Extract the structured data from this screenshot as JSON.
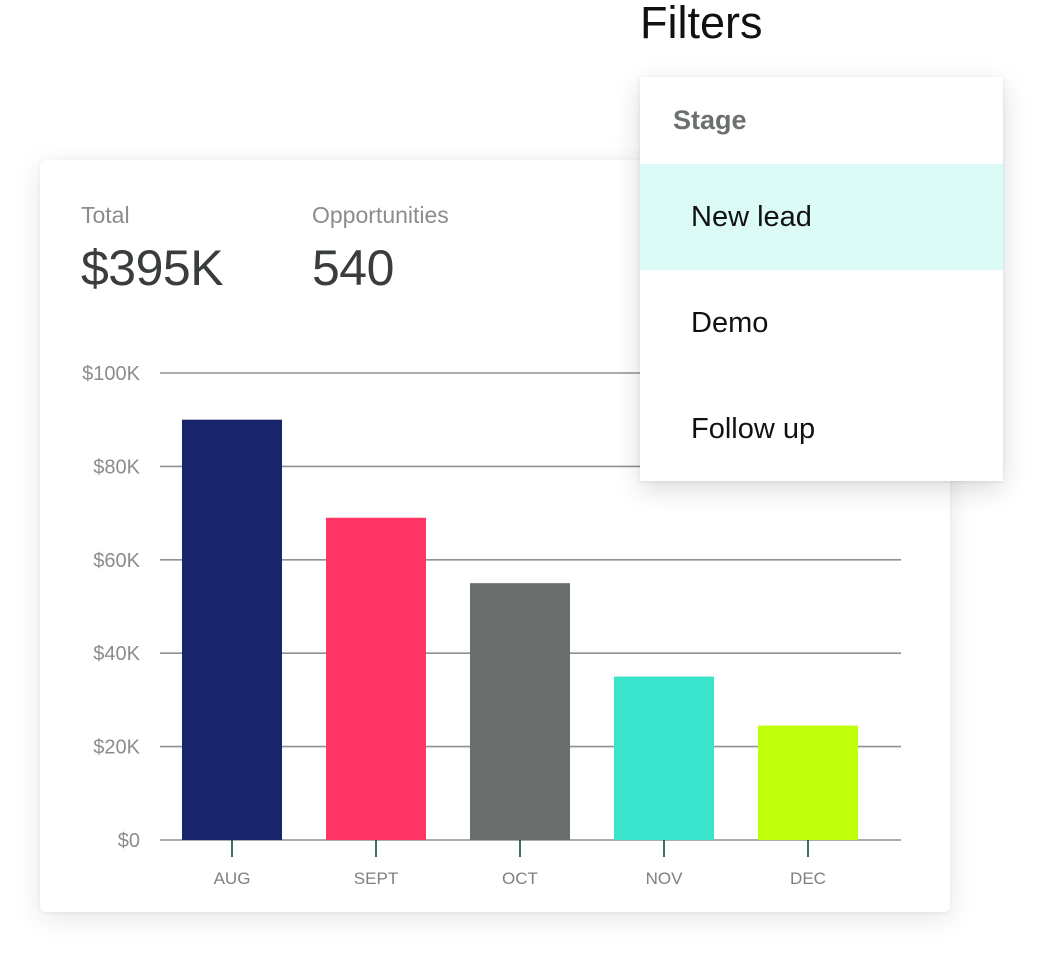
{
  "summary": {
    "total_label": "Total",
    "total_value": "$395K",
    "opportunities_label": "Opportunities",
    "opportunities_value": "540"
  },
  "filters": {
    "title": "Filters",
    "header": "Stage",
    "options": [
      {
        "label": "New lead",
        "selected": true
      },
      {
        "label": "Demo",
        "selected": false
      },
      {
        "label": "Follow up",
        "selected": false
      }
    ],
    "selected_bg": "#ddfbf6"
  },
  "chart_data": {
    "type": "bar",
    "categories": [
      "AUG",
      "SEPT",
      "OCT",
      "NOV",
      "DEC"
    ],
    "values": [
      90000,
      69000,
      55000,
      35000,
      24500
    ],
    "colors": [
      "#18246b",
      "#ff3565",
      "#6a6f6d",
      "#39e3cc",
      "#bfff0a"
    ],
    "y_ticks": [
      {
        "value": 0,
        "label": "$0"
      },
      {
        "value": 20000,
        "label": "$20K"
      },
      {
        "value": 40000,
        "label": "$40K"
      },
      {
        "value": 60000,
        "label": "$60K"
      },
      {
        "value": 80000,
        "label": "$80K"
      },
      {
        "value": 100000,
        "label": "$100K"
      }
    ],
    "ylim": [
      0,
      100000
    ],
    "grid": true,
    "xlabel": "",
    "ylabel": ""
  }
}
